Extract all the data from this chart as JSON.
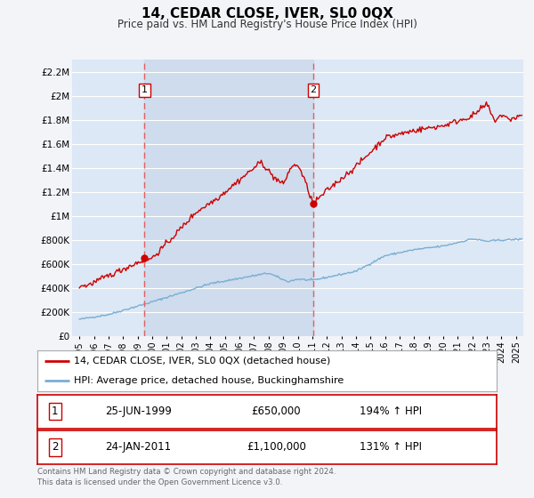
{
  "title": "14, CEDAR CLOSE, IVER, SL0 0QX",
  "subtitle": "Price paid vs. HM Land Registry's House Price Index (HPI)",
  "background_color": "#f2f4f8",
  "plot_bg_color": "#dce8f5",
  "ylabel_ticks": [
    "£0",
    "£200K",
    "£400K",
    "£600K",
    "£800K",
    "£1M",
    "£1.2M",
    "£1.4M",
    "£1.6M",
    "£1.8M",
    "£2M",
    "£2.2M"
  ],
  "ytick_values": [
    0,
    200000,
    400000,
    600000,
    800000,
    1000000,
    1200000,
    1400000,
    1600000,
    1800000,
    2000000,
    2200000
  ],
  "ylim": [
    0,
    2300000
  ],
  "xlim_start": 1994.5,
  "xlim_end": 2025.5,
  "sale1_date": 1999.48,
  "sale1_price": 650000,
  "sale2_date": 2011.07,
  "sale2_price": 1100000,
  "legend_line1": "14, CEDAR CLOSE, IVER, SL0 0QX (detached house)",
  "legend_line2": "HPI: Average price, detached house, Buckinghamshire",
  "table_row1_date": "25-JUN-1999",
  "table_row1_price": "£650,000",
  "table_row1_pct": "194% ↑ HPI",
  "table_row2_date": "24-JAN-2011",
  "table_row2_price": "£1,100,000",
  "table_row2_pct": "131% ↑ HPI",
  "footnote1": "Contains HM Land Registry data © Crown copyright and database right 2024.",
  "footnote2": "This data is licensed under the Open Government Licence v3.0.",
  "red_color": "#cc0000",
  "blue_color": "#7aadd4",
  "vline_color": "#e06060",
  "shade_color": "#ccdaec"
}
